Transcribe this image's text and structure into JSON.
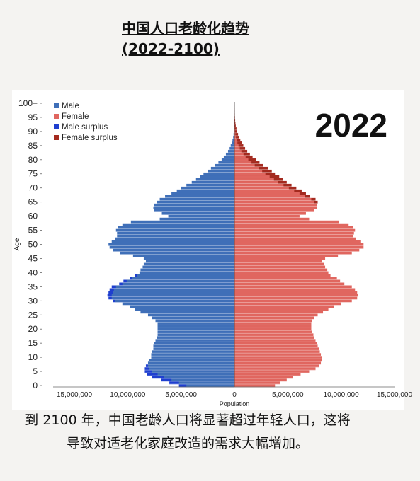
{
  "page": {
    "title_line1": "中国人口老龄化趋势",
    "title_line2": "(2022-2100)",
    "caption": "到 2100 年，中国老龄人口将显著超过年轻人口，这将导致对适老化家庭改造的需求大幅增加。"
  },
  "colors": {
    "male": "#3f6fb8",
    "female": "#e0665f",
    "male_surplus": "#1f3fcf",
    "female_surplus": "#a42a1f"
  },
  "chart_data": {
    "type": "bar",
    "orientation": "horizontal",
    "year_label": "2022",
    "title": "",
    "xlabel": "Population",
    "ylabel": "Age",
    "xlim": [
      -15000000,
      15000000
    ],
    "x_ticks": [
      "15,000,000",
      "10,000,000",
      "5,000,000",
      "0",
      "5,000,000",
      "10,000,000",
      "15,000,000"
    ],
    "x_tick_values": [
      -15000000,
      -10000000,
      -5000000,
      0,
      5000000,
      10000000,
      15000000
    ],
    "y_ticks": [
      "0",
      "5",
      "10",
      "15",
      "20",
      "25",
      "30",
      "35",
      "40",
      "45",
      "50",
      "55",
      "60",
      "65",
      "70",
      "75",
      "80",
      "85",
      "90",
      "95",
      "100+"
    ],
    "legend": [
      "Male",
      "Female",
      "Male surplus",
      "Female surplus"
    ],
    "legend_position": "top-left",
    "ages": [
      0,
      1,
      2,
      3,
      4,
      5,
      6,
      7,
      8,
      9,
      10,
      11,
      12,
      13,
      14,
      15,
      16,
      17,
      18,
      19,
      20,
      21,
      22,
      23,
      24,
      25,
      26,
      27,
      28,
      29,
      30,
      31,
      32,
      33,
      34,
      35,
      36,
      37,
      38,
      39,
      40,
      41,
      42,
      43,
      44,
      45,
      46,
      47,
      48,
      49,
      50,
      51,
      52,
      53,
      54,
      55,
      56,
      57,
      58,
      59,
      60,
      61,
      62,
      63,
      64,
      65,
      66,
      67,
      68,
      69,
      70,
      71,
      72,
      73,
      74,
      75,
      76,
      77,
      78,
      79,
      80,
      81,
      82,
      83,
      84,
      85,
      86,
      87,
      88,
      89,
      90,
      91,
      92,
      93,
      94,
      95,
      96,
      97,
      98,
      99,
      100
    ],
    "series": [
      {
        "name": "Male",
        "values": [
          4500000,
          5200000,
          5900000,
          6600000,
          7200000,
          7700000,
          8000000,
          8100000,
          8100000,
          8000000,
          7800000,
          7800000,
          7700000,
          7600000,
          7600000,
          7500000,
          7400000,
          7300000,
          7200000,
          7200000,
          7200000,
          7200000,
          7200000,
          7400000,
          7700000,
          8100000,
          8800000,
          9300000,
          9800000,
          10500000,
          11200000,
          11500000,
          11500000,
          11400000,
          11300000,
          11100000,
          10500000,
          10100000,
          9600000,
          9100000,
          8900000,
          8800000,
          8600000,
          8500000,
          8300000,
          8500000,
          9500000,
          10700000,
          11400000,
          11700000,
          11800000,
          11500000,
          11200000,
          11000000,
          11000000,
          11100000,
          10900000,
          10500000,
          9700000,
          7000000,
          6200000,
          6800000,
          7500000,
          7600000,
          7500000,
          7300000,
          7000000,
          6500000,
          5900000,
          5400000,
          5000000,
          4500000,
          4000000,
          3600000,
          3200000,
          2900000,
          2500000,
          2200000,
          1800000,
          1500000,
          1200000,
          1000000,
          800000,
          600000,
          450000,
          350000,
          250000,
          180000,
          120000,
          80000,
          50000,
          30000,
          20000,
          12000,
          8000,
          5000,
          3000,
          2000,
          1000,
          500,
          500
        ]
      },
      {
        "name": "Female",
        "values": [
          3800000,
          4300000,
          4900000,
          5500000,
          6200000,
          7000000,
          7600000,
          7900000,
          8100000,
          8200000,
          8200000,
          8100000,
          8000000,
          7900000,
          7800000,
          7700000,
          7600000,
          7500000,
          7400000,
          7300000,
          7200000,
          7200000,
          7200000,
          7300000,
          7500000,
          7800000,
          8300000,
          8800000,
          9300000,
          10000000,
          11000000,
          11500000,
          11600000,
          11500000,
          11300000,
          11000000,
          10300000,
          9900000,
          9600000,
          9000000,
          8800000,
          8700000,
          8500000,
          8400000,
          8200000,
          8500000,
          9700000,
          11000000,
          11700000,
          12100000,
          12100000,
          11800000,
          11400000,
          11100000,
          11200000,
          11300000,
          11100000,
          10700000,
          9800000,
          7000000,
          6100000,
          6700000,
          7500000,
          7700000,
          7700000,
          7500000,
          7200000,
          6600000,
          6100000,
          5600000,
          5100000,
          4600000,
          4100000,
          3700000,
          3300000,
          2900000,
          2600000,
          2300000,
          1900000,
          1600000,
          1300000,
          1050000,
          850000,
          650000,
          500000,
          380000,
          280000,
          200000,
          140000,
          90000,
          60000,
          40000,
          25000,
          15000,
          10000,
          6000,
          4000,
          2500,
          1500,
          800,
          600
        ]
      },
      {
        "name": "Male surplus",
        "values": [
          700000,
          900000,
          1000000,
          1100000,
          1000000,
          700000,
          400000,
          200000,
          0,
          0,
          0,
          0,
          0,
          0,
          0,
          0,
          0,
          0,
          0,
          0,
          0,
          0,
          0,
          0,
          0,
          0,
          0,
          0,
          0,
          0,
          200000,
          300000,
          400000,
          400000,
          400000,
          400000,
          300000,
          300000,
          200000,
          200000,
          0,
          0,
          0,
          0,
          0,
          0,
          0,
          0,
          0,
          0,
          0,
          0,
          0,
          0,
          0,
          0,
          0,
          0,
          0,
          0,
          0,
          0,
          0,
          0,
          0,
          0,
          0,
          0,
          0,
          0,
          0,
          0,
          0,
          0,
          0,
          0,
          0,
          0,
          0,
          0,
          0,
          0,
          0,
          0,
          0,
          0,
          0,
          0,
          0,
          0,
          0,
          0,
          0,
          0,
          0,
          0,
          0,
          0,
          0,
          0,
          0
        ]
      },
      {
        "name": "Female surplus",
        "values": [
          0,
          0,
          0,
          0,
          0,
          0,
          0,
          0,
          0,
          0,
          0,
          0,
          0,
          0,
          0,
          0,
          0,
          0,
          0,
          0,
          0,
          0,
          0,
          0,
          0,
          0,
          0,
          0,
          0,
          0,
          0,
          0,
          0,
          0,
          0,
          0,
          0,
          0,
          0,
          0,
          0,
          0,
          0,
          0,
          0,
          0,
          0,
          0,
          0,
          0,
          0,
          0,
          0,
          0,
          0,
          0,
          0,
          0,
          0,
          0,
          0,
          0,
          0,
          0,
          0,
          300000,
          400000,
          500000,
          600000,
          700000,
          700000,
          750000,
          800000,
          850000,
          900000,
          900000,
          900000,
          850000,
          800000,
          750000,
          700000,
          650000,
          600000,
          550000,
          500000,
          450000,
          400000,
          350000,
          300000,
          250000,
          200000,
          150000,
          100000,
          80000,
          60000,
          40000,
          30000,
          20000,
          10000,
          5000,
          3000
        ]
      }
    ]
  }
}
